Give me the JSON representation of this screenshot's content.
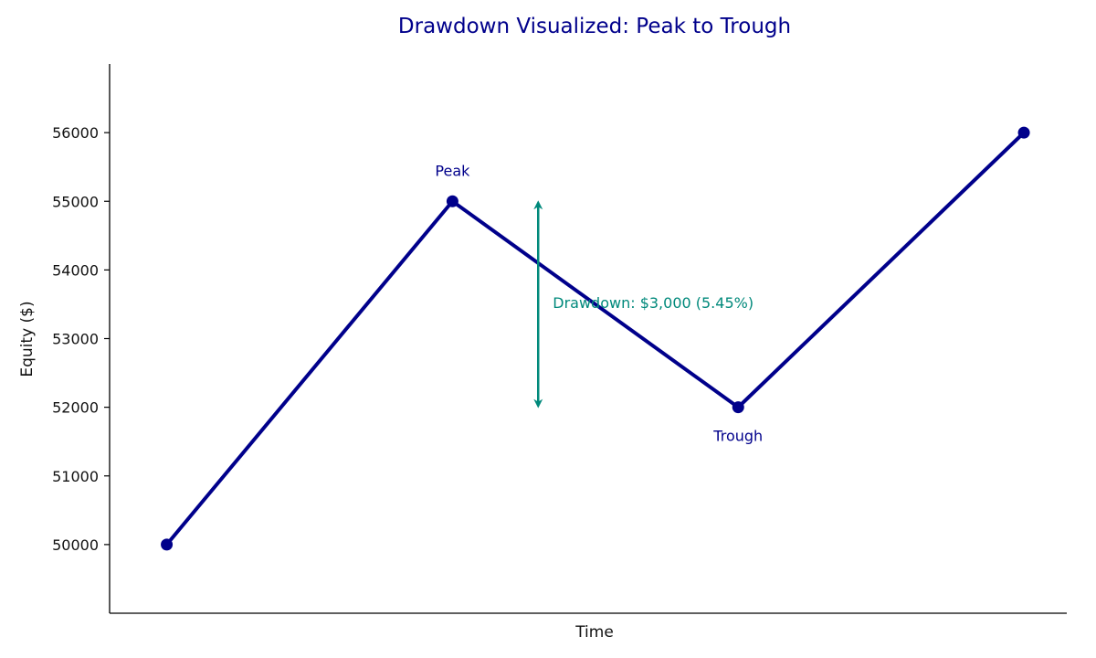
{
  "chart_data": {
    "type": "line",
    "title": "Drawdown Visualized: Peak to Trough",
    "xlabel": "Time",
    "ylabel": "Equity ($)",
    "x": [
      0,
      1,
      2,
      3
    ],
    "values": [
      50000,
      55000,
      52000,
      56000
    ],
    "ylim": [
      49000,
      57000
    ],
    "yticks": [
      "50000",
      "51000",
      "52000",
      "53000",
      "54000",
      "55000",
      "56000"
    ],
    "grid": false,
    "annotations": {
      "peak": {
        "text": "Peak",
        "x": 1,
        "y": 55000
      },
      "trough": {
        "text": "Trough",
        "x": 2,
        "y": 52000
      },
      "drawdown": {
        "text": "Drawdown: $3,000 (5.45%)",
        "from": 55000,
        "to": 52000,
        "x": 1.3
      }
    },
    "colors": {
      "line": "#00008b",
      "title": "#00008b",
      "drawdown": "#00897b",
      "axis": "#000000"
    }
  }
}
